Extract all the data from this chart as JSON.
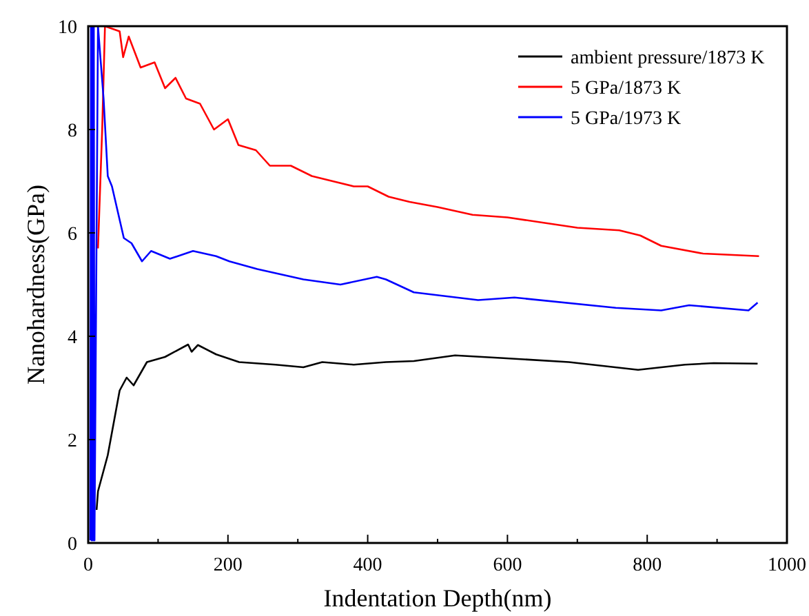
{
  "chart_data": {
    "type": "line",
    "xlabel": "Indentation Depth(nm)",
    "ylabel": "Nanohardness(GPa)",
    "xlim": [
      0,
      1000
    ],
    "ylim": [
      0,
      10
    ],
    "xticks": [
      0,
      {
        "value": 100,
        "label": null
      },
      200,
      {
        "value": 300,
        "label": null
      },
      400,
      {
        "value": 500,
        "label": null
      },
      600,
      {
        "value": 700,
        "label": null
      },
      800,
      {
        "value": 900,
        "label": null
      },
      1000
    ],
    "yticks": [
      0,
      2,
      4,
      6,
      8,
      10
    ],
    "grid": false,
    "legend": "top right",
    "marker": "none",
    "line_style": "solid",
    "series": [
      {
        "name": "ambient pressure/1873 K",
        "color": "#000000",
        "x": [
          12,
          14,
          28,
          45,
          55,
          65,
          84,
          110,
          143,
          148,
          157,
          183,
          216,
          268,
          308,
          335,
          380,
          426,
          466,
          525,
          590,
          688,
          787,
          854,
          895,
          958
        ],
        "values": [
          0.64,
          1.0,
          1.7,
          2.95,
          3.2,
          3.05,
          3.5,
          3.6,
          3.84,
          3.7,
          3.83,
          3.65,
          3.5,
          3.45,
          3.4,
          3.5,
          3.45,
          3.5,
          3.52,
          3.63,
          3.58,
          3.5,
          3.35,
          3.45,
          3.48,
          3.47
        ]
      },
      {
        "name": "5 GPa/1873 K",
        "color": "#ff0000",
        "x": [
          14,
          20,
          24,
          45,
          50,
          58,
          75,
          95,
          110,
          125,
          140,
          160,
          180,
          200,
          215,
          240,
          260,
          290,
          320,
          350,
          380,
          400,
          430,
          460,
          500,
          550,
          600,
          650,
          700,
          760,
          790,
          820,
          880,
          960
        ],
        "values": [
          5.7,
          8,
          10,
          9.9,
          9.4,
          9.8,
          9.2,
          9.3,
          8.8,
          9.0,
          8.6,
          8.5,
          8.0,
          8.2,
          7.7,
          7.6,
          7.3,
          7.3,
          7.1,
          7.0,
          6.9,
          6.9,
          6.7,
          6.6,
          6.5,
          6.35,
          6.3,
          6.2,
          6.1,
          6.05,
          5.95,
          5.75,
          5.6,
          5.55
        ]
      },
      {
        "name": "5 GPa/1973 K",
        "color": "#0000ff",
        "x": [
          3,
          4,
          5,
          6,
          7,
          8,
          9,
          14,
          22,
          28,
          34,
          51,
          62,
          77,
          90,
          117,
          150,
          183,
          202,
          242,
          308,
          361,
          413,
          426,
          466,
          558,
          610,
          755,
          820,
          860,
          945,
          958
        ],
        "values": [
          0.05,
          10,
          0.05,
          10,
          0.05,
          10,
          0.05,
          10,
          8.6,
          7.1,
          6.9,
          5.9,
          5.8,
          5.45,
          5.65,
          5.5,
          5.65,
          5.55,
          5.45,
          5.3,
          5.1,
          5.0,
          5.15,
          5.1,
          4.85,
          4.7,
          4.75,
          4.55,
          4.5,
          4.6,
          4.5,
          4.65
        ]
      }
    ]
  }
}
